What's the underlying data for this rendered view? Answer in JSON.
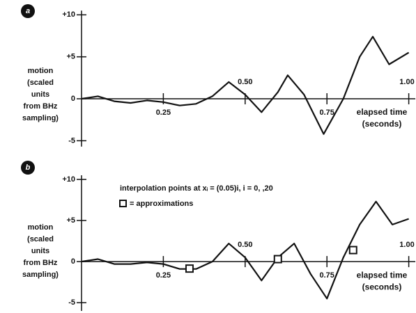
{
  "chart_data": [
    {
      "type": "line",
      "label": "a",
      "y_label_lines": [
        "motion",
        "(scaled",
        "units",
        "from BHz",
        "sampling)"
      ],
      "x_label_lines": [
        "elapsed time",
        "(seconds)"
      ],
      "xlim": [
        0,
        1.02
      ],
      "ylim": [
        -5.7,
        10.5
      ],
      "xticks": [
        0.25,
        {
          "value": 0.5,
          "label": "0.50"
        },
        0.75,
        {
          "value": 1.0,
          "label": "1.00"
        }
      ],
      "yticks": [
        {
          "value": 10,
          "label": "+10"
        },
        {
          "value": 5,
          "label": "+5"
        },
        0,
        -5
      ],
      "series": [
        {
          "color": "#111111",
          "x": [
            0,
            0.05,
            0.1,
            0.15,
            0.2,
            0.25,
            0.3,
            0.35,
            0.4,
            0.45,
            0.5,
            0.55,
            0.6,
            0.63,
            0.68,
            0.74,
            0.8,
            0.85,
            0.89,
            0.94,
            1.0
          ],
          "values": [
            0,
            0.3,
            -0.3,
            -0.5,
            -0.2,
            -0.4,
            -0.8,
            -0.6,
            0.3,
            2.0,
            0.5,
            -1.6,
            0.8,
            2.8,
            0.5,
            -4.2,
            0.0,
            5.0,
            7.4,
            4.1,
            5.5
          ]
        }
      ]
    },
    {
      "type": "line",
      "label": "b",
      "note": "interpolation points at xᵢ = (0.05)i, i = 0,   ,20",
      "approximation_note": "= approximations",
      "y_label_lines": [
        "motion",
        "(scaled",
        "units",
        "from BHz",
        "sampling)"
      ],
      "x_label_lines": [
        "elapsed time",
        "(seconds)"
      ],
      "xlim": [
        0,
        1.02
      ],
      "ylim": [
        -6,
        10.5
      ],
      "xticks": [
        0.25,
        {
          "value": 0.5,
          "label": "0.50"
        },
        0.75,
        {
          "value": 1.0,
          "label": "1.00"
        }
      ],
      "yticks": [
        {
          "value": 10,
          "label": "+10"
        },
        {
          "value": 5,
          "label": "+5"
        },
        0,
        -5
      ],
      "series": [
        {
          "color": "#111111",
          "x": [
            0,
            0.05,
            0.1,
            0.15,
            0.2,
            0.25,
            0.3,
            0.35,
            0.4,
            0.45,
            0.5,
            0.55,
            0.6,
            0.65,
            0.7,
            0.75,
            0.8,
            0.85,
            0.9,
            0.95,
            1.0
          ],
          "values": [
            0,
            0.3,
            -0.3,
            -0.3,
            -0.1,
            -0.3,
            -0.9,
            -0.9,
            0,
            2.2,
            0.5,
            -2.3,
            0.5,
            2.2,
            -1.5,
            -4.5,
            0.5,
            4.5,
            7.3,
            4.5,
            5.2
          ]
        },
        {
          "color": "#111111",
          "marker": "square",
          "x": [
            0.33,
            0.6,
            0.83
          ],
          "values": [
            -0.85,
            0.3,
            1.4
          ]
        }
      ]
    }
  ]
}
